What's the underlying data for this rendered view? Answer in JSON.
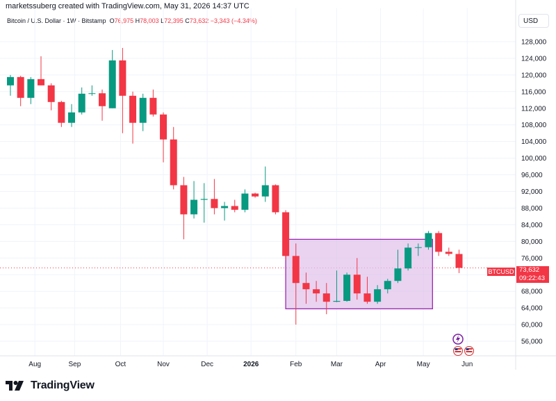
{
  "header": {
    "author_line": "marketssuberg created with TradingView.com, May 31, 2026 14:37 UTC",
    "symbol_name": "Bitcoin / U.S. Dollar · 1W · Bitstamp",
    "o_label": "O",
    "o_value": "76,975",
    "h_label": "H",
    "h_value": "78,003",
    "l_label": "L",
    "l_value": "72,395",
    "c_label": "C",
    "c_value": "73,632",
    "change": "−3,343 (−4.34%)",
    "currency": "USD"
  },
  "last_price": {
    "symbol": "BTCUSD",
    "price": "73,632",
    "countdown": "09:22:43",
    "value": 73632
  },
  "footer": {
    "brand": "TradingView"
  },
  "colors": {
    "up": "#089981",
    "down": "#f23645",
    "box_border": "#9c27b0",
    "box_fill": "#e1c4ec"
  },
  "chart_data": {
    "type": "candlestick",
    "title": "",
    "yaxis_ticks": [
      56000,
      60000,
      64000,
      68000,
      72000,
      76000,
      80000,
      84000,
      88000,
      92000,
      96000,
      100000,
      104000,
      108000,
      112000,
      116000,
      120000,
      124000,
      128000
    ],
    "ylim": [
      52500,
      131000
    ],
    "x_labels": [
      {
        "label": "Aug",
        "index": 2.4
      },
      {
        "label": "Sep",
        "index": 6.3
      },
      {
        "label": "Oct",
        "index": 10.8
      },
      {
        "label": "Nov",
        "index": 15.0
      },
      {
        "label": "Dec",
        "index": 19.3
      },
      {
        "label": "2026",
        "index": 23.6
      },
      {
        "label": "Feb",
        "index": 28.0
      },
      {
        "label": "Mar",
        "index": 32.0
      },
      {
        "label": "Apr",
        "index": 36.3
      },
      {
        "label": "May",
        "index": 40.5
      },
      {
        "label": "Jun",
        "index": 44.8
      }
    ],
    "candles": [
      {
        "o": 117500,
        "h": 120000,
        "l": 115000,
        "c": 119500
      },
      {
        "o": 119500,
        "h": 119800,
        "l": 112500,
        "c": 114500
      },
      {
        "o": 114500,
        "h": 119500,
        "l": 113000,
        "c": 119000
      },
      {
        "o": 119000,
        "h": 124500,
        "l": 117500,
        "c": 117500
      },
      {
        "o": 117500,
        "h": 118000,
        "l": 111500,
        "c": 113500
      },
      {
        "o": 113500,
        "h": 113800,
        "l": 107500,
        "c": 108500
      },
      {
        "o": 108500,
        "h": 113000,
        "l": 107500,
        "c": 111000
      },
      {
        "o": 111000,
        "h": 117000,
        "l": 110500,
        "c": 115500
      },
      {
        "o": 115500,
        "h": 117500,
        "l": 115000,
        "c": 115600
      },
      {
        "o": 115600,
        "h": 116500,
        "l": 109000,
        "c": 112500
      },
      {
        "o": 112000,
        "h": 126000,
        "l": 112000,
        "c": 123500
      },
      {
        "o": 123500,
        "h": 126500,
        "l": 106000,
        "c": 115000
      },
      {
        "o": 115000,
        "h": 116000,
        "l": 103500,
        "c": 108500
      },
      {
        "o": 108500,
        "h": 115500,
        "l": 106500,
        "c": 114500
      },
      {
        "o": 114500,
        "h": 116500,
        "l": 110000,
        "c": 110500
      },
      {
        "o": 110500,
        "h": 111000,
        "l": 99000,
        "c": 104500
      },
      {
        "o": 104500,
        "h": 107500,
        "l": 92500,
        "c": 93500
      },
      {
        "o": 93500,
        "h": 95500,
        "l": 80500,
        "c": 86500
      },
      {
        "o": 86500,
        "h": 94500,
        "l": 85500,
        "c": 90000
      },
      {
        "o": 90000,
        "h": 94000,
        "l": 84500,
        "c": 90200
      },
      {
        "o": 90200,
        "h": 95000,
        "l": 86500,
        "c": 88000
      },
      {
        "o": 88000,
        "h": 89500,
        "l": 85000,
        "c": 88500
      },
      {
        "o": 88500,
        "h": 90000,
        "l": 87000,
        "c": 87600
      },
      {
        "o": 87600,
        "h": 92500,
        "l": 87000,
        "c": 91500
      },
      {
        "o": 91500,
        "h": 91700,
        "l": 90500,
        "c": 90800
      },
      {
        "o": 90800,
        "h": 98000,
        "l": 89500,
        "c": 93500
      },
      {
        "o": 93500,
        "h": 93700,
        "l": 86500,
        "c": 87000
      },
      {
        "o": 87000,
        "h": 87500,
        "l": 75500,
        "c": 76500
      },
      {
        "o": 76500,
        "h": 79500,
        "l": 60000,
        "c": 70000
      },
      {
        "o": 70000,
        "h": 72500,
        "l": 65000,
        "c": 68500
      },
      {
        "o": 68500,
        "h": 70500,
        "l": 65500,
        "c": 67500
      },
      {
        "o": 67500,
        "h": 70000,
        "l": 62500,
        "c": 65500
      },
      {
        "o": 65500,
        "h": 73000,
        "l": 65400,
        "c": 65700
      },
      {
        "o": 65700,
        "h": 72500,
        "l": 65500,
        "c": 72000
      },
      {
        "o": 72000,
        "h": 76000,
        "l": 66000,
        "c": 67500
      },
      {
        "o": 67500,
        "h": 71500,
        "l": 65000,
        "c": 65500
      },
      {
        "o": 65500,
        "h": 69500,
        "l": 65000,
        "c": 68500
      },
      {
        "o": 68500,
        "h": 71000,
        "l": 67500,
        "c": 70500
      },
      {
        "o": 70500,
        "h": 78000,
        "l": 70000,
        "c": 73500
      },
      {
        "o": 73500,
        "h": 79500,
        "l": 73000,
        "c": 78500
      },
      {
        "o": 78500,
        "h": 79500,
        "l": 76500,
        "c": 78600
      },
      {
        "o": 78600,
        "h": 82500,
        "l": 78000,
        "c": 82000
      },
      {
        "o": 82000,
        "h": 82500,
        "l": 76500,
        "c": 77500
      },
      {
        "o": 77500,
        "h": 78500,
        "l": 76500,
        "c": 77000
      },
      {
        "o": 76975,
        "h": 78003,
        "l": 72395,
        "c": 73632
      }
    ],
    "range_box": {
      "start_index": 27,
      "end_index": 41.4,
      "top": 80500,
      "bottom": 63800
    }
  }
}
